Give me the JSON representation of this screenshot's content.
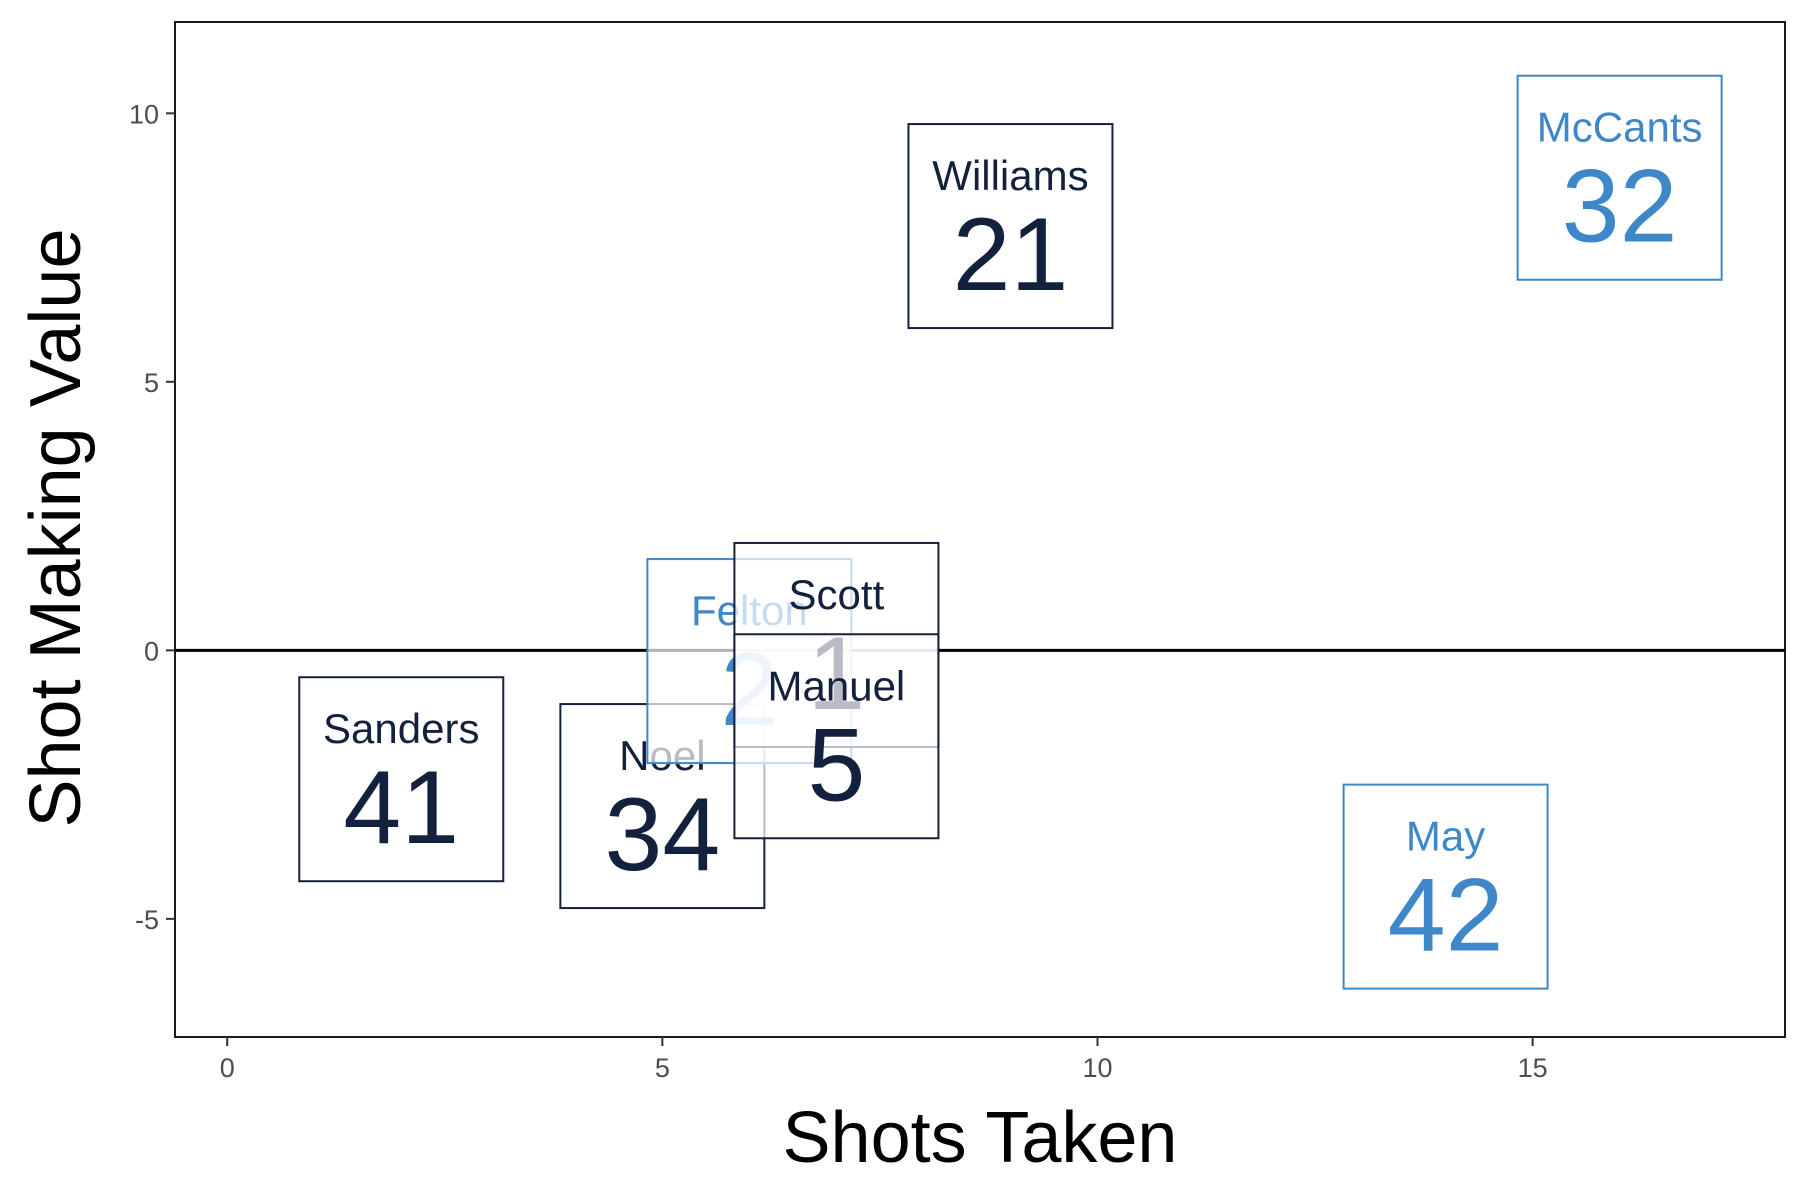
{
  "chart_data": {
    "type": "scatter",
    "title": "",
    "xlabel": "Shots Taken",
    "ylabel": "Shot Making Value",
    "xlim": [
      -0.6,
      17.9
    ],
    "ylim": [
      -7.2,
      11.7
    ],
    "xticks": [
      0,
      5,
      10,
      15
    ],
    "yticks": [
      -5,
      0,
      5,
      10
    ],
    "reference_line_y": 0,
    "grid": false,
    "legend": "none",
    "colors": {
      "dark": "#14213d",
      "light": "#3e87c9"
    },
    "points": [
      {
        "name": "Sanders",
        "number": "41",
        "x": 2,
        "y": -2.4,
        "color": "dark"
      },
      {
        "name": "Noel",
        "number": "34",
        "x": 5,
        "y": -2.9,
        "color": "dark"
      },
      {
        "name": "Felton",
        "number": "2",
        "x": 6,
        "y": -0.2,
        "color": "light"
      },
      {
        "name": "Scott",
        "number": "1",
        "x": 7,
        "y": 0.1,
        "color": "dark"
      },
      {
        "name": "Manuel",
        "number": "5",
        "x": 7,
        "y": -1.6,
        "color": "dark"
      },
      {
        "name": "Williams",
        "number": "21",
        "x": 9,
        "y": 7.9,
        "color": "dark"
      },
      {
        "name": "May",
        "number": "42",
        "x": 14,
        "y": -4.4,
        "color": "light"
      },
      {
        "name": "McCants",
        "number": "32",
        "x": 16,
        "y": 8.8,
        "color": "light"
      }
    ]
  }
}
